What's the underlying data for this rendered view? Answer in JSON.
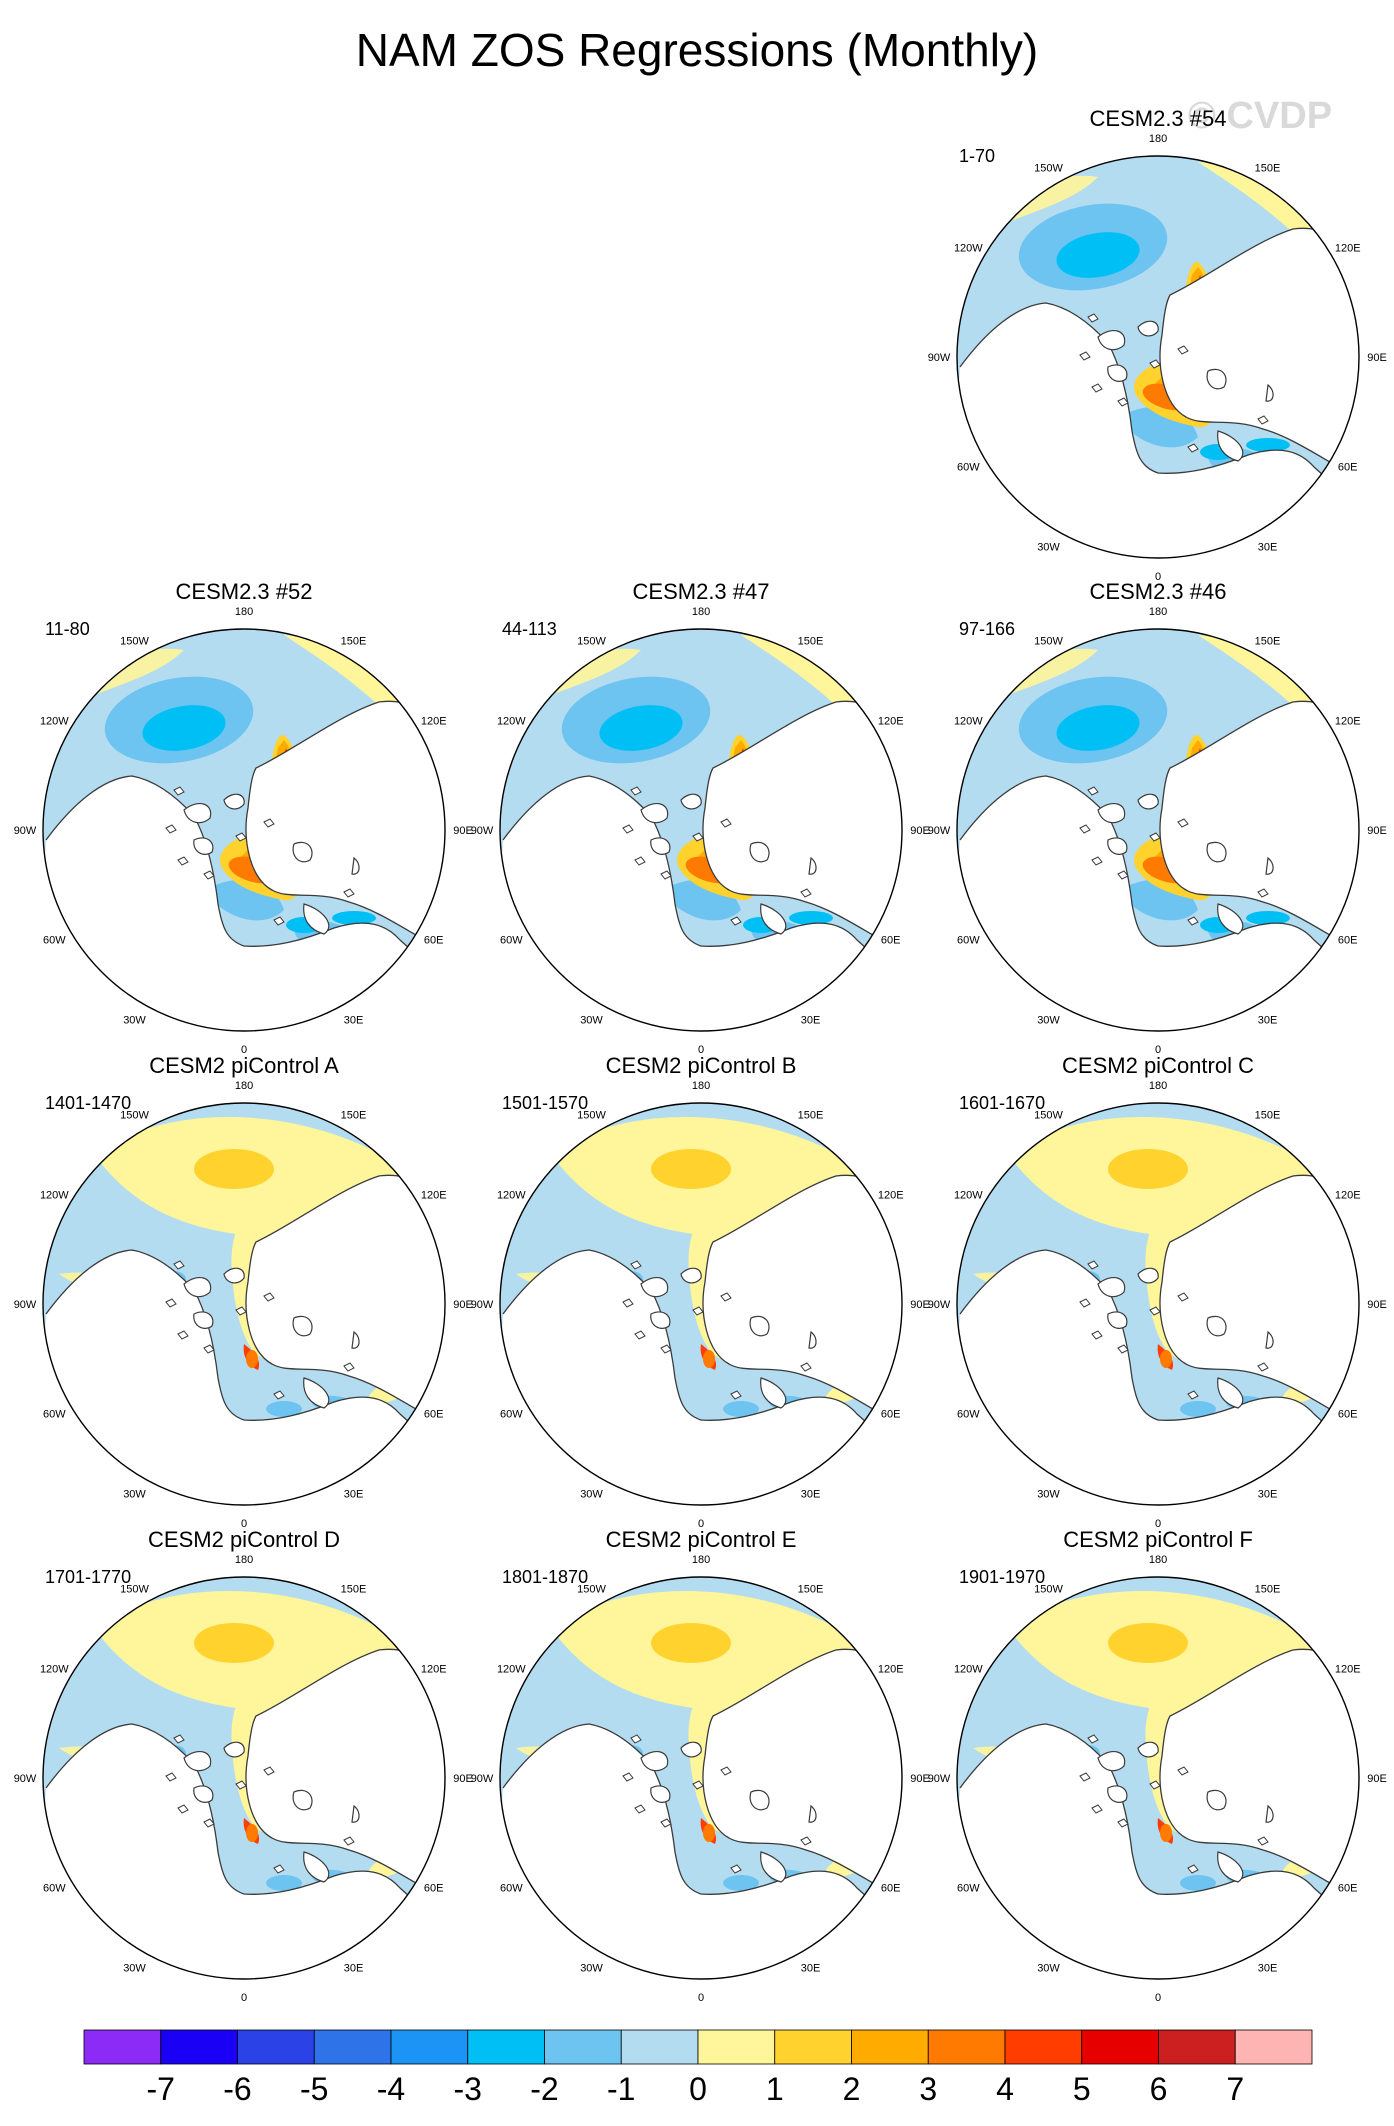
{
  "title": "NAM ZOS Regressions (Monthly)",
  "watermark": "© CVDP",
  "lon_labels": [
    "180",
    "150E",
    "120E",
    "90E",
    "60E",
    "30E",
    "0",
    "30W",
    "60W",
    "90W",
    "120W",
    "150W"
  ],
  "panels": [
    {
      "id": "p54",
      "name": "CESM2.3 #54",
      "years": "1-70",
      "family": "cesm23"
    },
    {
      "id": "p52",
      "name": "CESM2.3 #52",
      "years": "11-80",
      "family": "cesm23"
    },
    {
      "id": "p47",
      "name": "CESM2.3 #47",
      "years": "44-113",
      "family": "cesm23"
    },
    {
      "id": "p46",
      "name": "CESM2.3 #46",
      "years": "97-166",
      "family": "cesm23"
    },
    {
      "id": "pA",
      "name": "CESM2 piControl A",
      "years": "1401-1470",
      "family": "picontrol"
    },
    {
      "id": "pB",
      "name": "CESM2 piControl B",
      "years": "1501-1570",
      "family": "picontrol"
    },
    {
      "id": "pC",
      "name": "CESM2 piControl C",
      "years": "1601-1670",
      "family": "picontrol"
    },
    {
      "id": "pD",
      "name": "CESM2 piControl D",
      "years": "1701-1770",
      "family": "picontrol"
    },
    {
      "id": "pE",
      "name": "CESM2 piControl E",
      "years": "1801-1870",
      "family": "picontrol"
    },
    {
      "id": "pF",
      "name": "CESM2 piControl F",
      "years": "1901-1970",
      "family": "picontrol"
    }
  ],
  "colorbar": {
    "colors": [
      "#8c2bf5",
      "#1a00f5",
      "#2b43e6",
      "#2e74e8",
      "#1c94f5",
      "#00bff5",
      "#6ec4f0",
      "#b4dcf0",
      "#fff59a",
      "#ffd22e",
      "#ffab00",
      "#ff7a00",
      "#ff3d00",
      "#e60000",
      "#cc1f1f",
      "#ffb4b4"
    ],
    "labels": [
      "-7",
      "-6",
      "-5",
      "-4",
      "-3",
      "-2",
      "-1",
      "0",
      "1",
      "2",
      "3",
      "4",
      "5",
      "6",
      "7"
    ]
  }
}
